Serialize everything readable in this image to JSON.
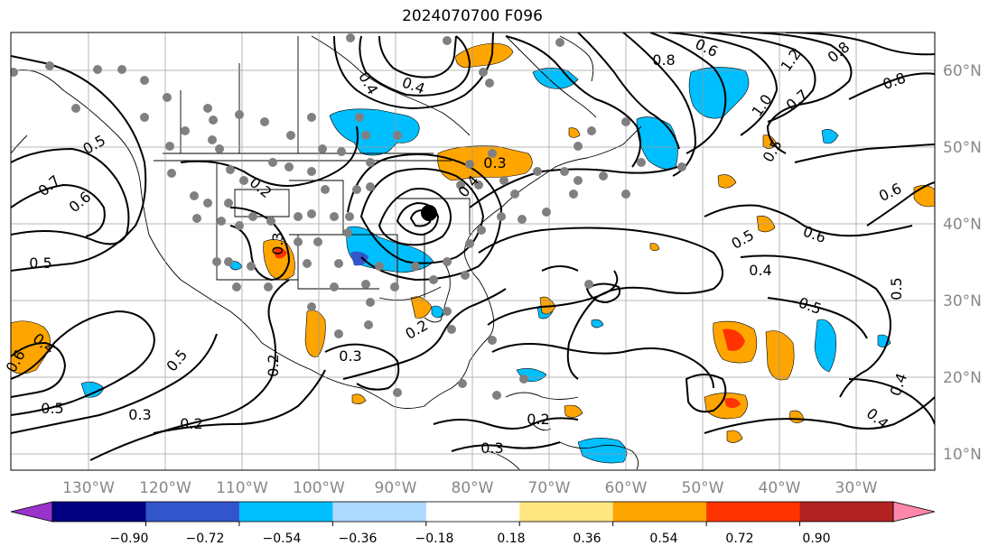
{
  "title": "2024070700 F096",
  "longitude_labels": [
    "130°W",
    "120°W",
    "110°W",
    "100°W",
    "90°W",
    "80°W",
    "70°W",
    "60°W",
    "50°W",
    "40°W",
    "30°W"
  ],
  "latitude_labels": [
    "60°N",
    "50°N",
    "40°N",
    "30°N",
    "20°N",
    "10°N"
  ],
  "colorbar": {
    "colors": [
      "#9933cc",
      "#000080",
      "#3355cc",
      "#00bfff",
      "#add8ff",
      "#ffffff",
      "#ffe680",
      "#ffa500",
      "#ff3300",
      "#b22222",
      "#ff88aa"
    ],
    "tick_labels": [
      "−0.90",
      "−0.72",
      "−0.54",
      "−0.36",
      "−0.18",
      "0.18",
      "0.36",
      "0.54",
      "0.72",
      "0.90"
    ]
  },
  "contour_labels": [
    "0.5",
    "0.7",
    "0.6",
    "0.5",
    "0.4",
    "0.6",
    "0.5",
    "0.2",
    "0.3",
    "0.2",
    "0.4",
    "0.3",
    "0.3",
    "0.3",
    "0.2",
    "0.3",
    "0.4",
    "0.6",
    "0.8",
    "0.8",
    "1.2",
    "1.0",
    "0.7",
    "0.8",
    "0.5",
    "0.6",
    "0.6",
    "0.5",
    "0.5",
    "0.4",
    "0.5",
    "0.4",
    "0.4",
    "0.4",
    "0.5",
    "0.2",
    "0.2"
  ],
  "colors": {
    "contour": "#000000",
    "grid": "#999999",
    "stations": "#808080",
    "low_center": "#000000"
  }
}
